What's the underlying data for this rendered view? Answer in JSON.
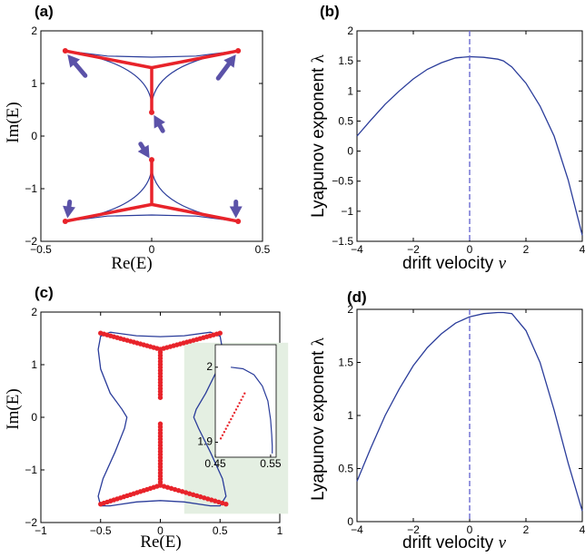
{
  "colors": {
    "curve": "#2a3c9a",
    "red": "#e8232a",
    "arrow": "#5b52a8",
    "inset_bg": "#e4efe2",
    "dash": "#6a6ad0"
  },
  "chart_data": [
    {
      "id": "a",
      "panel_label": "(a)",
      "type": "scatter",
      "xlabel": "Re(E)",
      "ylabel": "Im(E)",
      "xlim": [
        -0.5,
        0.5
      ],
      "ylim": [
        -2,
        2
      ],
      "xticks": [
        "−0.5",
        "0",
        "0.5"
      ],
      "yticks": [
        "−2",
        "−1",
        "0",
        "1",
        "2"
      ],
      "outer_curves": [
        {
          "x": [
            -0.39,
            -0.2,
            0,
            0.2,
            0.39
          ],
          "y": [
            1.62,
            1.52,
            1.5,
            1.52,
            1.62
          ]
        },
        {
          "x": [
            -0.39,
            -0.2,
            0,
            0.2,
            0.39
          ],
          "y": [
            -1.62,
            -1.52,
            -1.5,
            -1.52,
            -1.62
          ]
        }
      ],
      "cusps": {
        "top": [
          0,
          0.45
        ],
        "bottom": [
          0,
          -0.45
        ],
        "corners": [
          [
            -0.39,
            1.62
          ],
          [
            0.39,
            1.62
          ],
          [
            -0.39,
            -1.62
          ],
          [
            0.39,
            -1.62
          ]
        ]
      },
      "red_y_junction": {
        "top": [
          0,
          1.3
        ],
        "bottom": [
          0,
          -1.3
        ]
      },
      "arrows": [
        {
          "from": [
            -0.3,
            1.15
          ],
          "to": [
            -0.38,
            1.55
          ]
        },
        {
          "from": [
            0.3,
            1.1
          ],
          "to": [
            0.38,
            1.55
          ]
        },
        {
          "from": [
            0.05,
            0.1
          ],
          "to": [
            0.01,
            0.4
          ]
        },
        {
          "from": [
            -0.05,
            -0.15
          ],
          "to": [
            -0.01,
            -0.42
          ]
        },
        {
          "from": [
            -0.37,
            -1.25
          ],
          "to": [
            -0.38,
            -1.56
          ]
        },
        {
          "from": [
            0.38,
            -1.25
          ],
          "to": [
            0.38,
            -1.56
          ]
        }
      ]
    },
    {
      "id": "b",
      "panel_label": "(b)",
      "type": "line",
      "xlabel": "drift velocity",
      "xlabel_var": "v",
      "ylabel": "Lyapunov exponent",
      "ylabel_var": "λ",
      "xlim": [
        -4,
        4
      ],
      "ylim": [
        -1.5,
        2
      ],
      "xticks": [
        "−4",
        "−2",
        "0",
        "2",
        "4"
      ],
      "yticks": [
        "−1.5",
        "−1",
        "−0.5",
        "0",
        "0.5",
        "1",
        "1.5",
        "2"
      ],
      "series": [
        {
          "x": [
            -4,
            -3.5,
            -3,
            -2.5,
            -2,
            -1.5,
            -1,
            -0.5,
            0,
            0.5,
            1,
            1.2,
            1.5,
            2,
            2.5,
            3,
            3.5,
            4
          ],
          "y": [
            0.25,
            0.52,
            0.78,
            1.0,
            1.2,
            1.36,
            1.47,
            1.55,
            1.57,
            1.56,
            1.53,
            1.5,
            1.4,
            1.13,
            0.75,
            0.25,
            -0.48,
            -1.4
          ]
        }
      ],
      "vline_x": 0
    },
    {
      "id": "c",
      "panel_label": "(c)",
      "type": "scatter",
      "xlabel": "Re(E)",
      "ylabel": "Im(E)",
      "xlim": [
        -1,
        1
      ],
      "ylim": [
        -2.4,
        2.4
      ],
      "xticks": [
        "−1",
        "−0.5",
        "0",
        "0.5",
        "1"
      ],
      "yticks": [
        "−2",
        "−1",
        "0",
        "1",
        "2"
      ],
      "outline": {
        "x": [
          -0.42,
          -0.2,
          0,
          0.2,
          0.42,
          0.5,
          0.52,
          0.48,
          0.38,
          0.3,
          0.28,
          0.32,
          0.42,
          0.52,
          0.55,
          0.5,
          0.42,
          0.2,
          0,
          -0.2,
          -0.42,
          -0.5,
          -0.52,
          -0.48,
          -0.38,
          -0.3,
          -0.28,
          -0.32,
          -0.42,
          -0.5,
          -0.52,
          -0.5,
          -0.42
        ],
        "y": [
          1.94,
          1.86,
          1.84,
          1.86,
          1.94,
          1.85,
          1.55,
          1.1,
          0.55,
          0.18,
          0,
          -0.25,
          -0.8,
          -1.4,
          -1.8,
          -2.02,
          -2.02,
          -1.93,
          -1.9,
          -1.93,
          -2.02,
          -2.02,
          -1.8,
          -1.4,
          -0.8,
          -0.25,
          0,
          0.18,
          0.55,
          1.1,
          1.55,
          1.85,
          1.94
        ]
      },
      "red_center_y": [
        [
          0.45,
          1.55
        ],
        [
          -0.15,
          -1.55
        ]
      ],
      "red_arms": {
        "top_junction": [
          0,
          1.55
        ],
        "bottom_junction": [
          0,
          -1.55
        ],
        "top_ends": [
          [
            -0.5,
            1.92
          ],
          [
            0.5,
            1.92
          ]
        ],
        "bottom_ends": [
          [
            -0.5,
            -1.98
          ],
          [
            0.55,
            -1.98
          ]
        ]
      },
      "inset": {
        "xticks": [
          "0.45",
          "0.55"
        ],
        "yticks": [
          "2",
          "1.9"
        ],
        "xlim": [
          0.45,
          0.56
        ],
        "ylim": [
          1.88,
          2.03
        ],
        "curve": {
          "x": [
            0.478,
            0.5,
            0.52,
            0.535,
            0.545,
            0.55,
            0.552,
            0.553,
            0.553
          ],
          "y": [
            2.0,
            1.998,
            1.99,
            1.975,
            1.955,
            1.93,
            1.91,
            1.895,
            1.885
          ]
        },
        "red_points": {
          "x0": 0.46,
          "y0": 1.905,
          "x1": 0.503,
          "y1": 1.965,
          "n": 14
        }
      }
    },
    {
      "id": "d",
      "panel_label": "(d)",
      "type": "line",
      "xlabel": "drift velocity",
      "xlabel_var": "v",
      "ylabel": "Lyapunov exponent",
      "ylabel_var": "λ",
      "xlim": [
        -4,
        4
      ],
      "ylim": [
        0,
        2
      ],
      "xticks": [
        "−4",
        "−2",
        "0",
        "2",
        "4"
      ],
      "yticks": [
        "0",
        "0.5",
        "1",
        "1.5",
        "2"
      ],
      "series": [
        {
          "x": [
            -4,
            -3.5,
            -3,
            -2.5,
            -2,
            -1.5,
            -1,
            -0.5,
            0,
            0.5,
            1,
            1.2,
            1.5,
            2,
            2.5,
            3,
            3.5,
            4
          ],
          "y": [
            0.38,
            0.7,
            1.0,
            1.25,
            1.47,
            1.64,
            1.77,
            1.87,
            1.93,
            1.96,
            1.97,
            1.97,
            1.96,
            1.8,
            1.5,
            1.05,
            0.55,
            0.1
          ]
        }
      ],
      "vline_x": 0
    }
  ]
}
